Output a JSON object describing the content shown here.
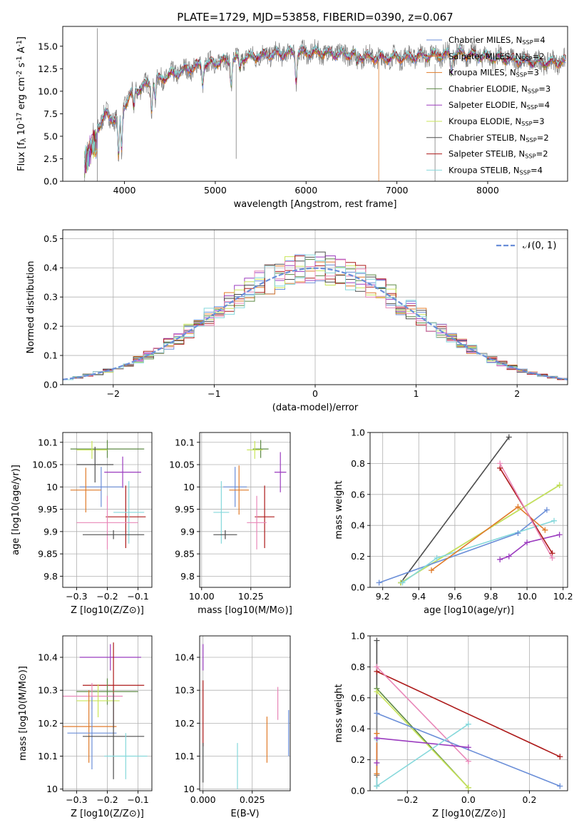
{
  "colors": {
    "c0": "#6a8ed8",
    "c1": "#e07b2a",
    "c2": "#5e8a46",
    "c3": "#9b3cbf",
    "c4": "#c9e55a",
    "c5": "#4d4d4d",
    "c6": "#ad1a1a",
    "c7": "#e887b8",
    "c8": "#85d8db",
    "c9": "#7f7f7f"
  },
  "chart_data": [
    {
      "id": "spectrum",
      "type": "line",
      "title": "PLATE=1729, MJD=53858, FIBERID=0390, z=0.067",
      "xlabel": "wavelength [Angstrom, rest frame]",
      "ylabel": "Flux [f_λ 10^-17 erg cm^-2 s^-1 A^-1]",
      "xlim": [
        3320,
        8880
      ],
      "ylim": [
        0,
        17.2
      ],
      "xticks": [
        4000,
        5000,
        6000,
        7000,
        8000
      ],
      "yticks": [
        0.0,
        2.5,
        5.0,
        7.5,
        10.0,
        12.5,
        15.0
      ],
      "grid": false,
      "legend_position": "upper right",
      "trend": {
        "x": [
          3550,
          3600,
          3700,
          3800,
          3900,
          4000,
          4100,
          4200,
          4300,
          4500,
          4800,
          5000,
          5300,
          5600,
          5900,
          6200,
          6500,
          6800,
          7100,
          7400,
          7700,
          8000,
          8300,
          8600,
          8800
        ],
        "y": [
          3.5,
          4.5,
          6.0,
          7.5,
          6.8,
          8.5,
          10.0,
          10.5,
          11.0,
          11.8,
          12.8,
          13.2,
          13.7,
          14.1,
          14.3,
          14.3,
          14.1,
          13.7,
          13.8,
          14.0,
          14.2,
          13.8,
          13.5,
          13.2,
          13.3
        ]
      },
      "series": [
        {
          "name": "Chabrier MILES, N_SSP=4",
          "color_key": "c0"
        },
        {
          "name": "Salpeter MILES, N_SSP=2",
          "color_key": "c1"
        },
        {
          "name": "Kroupa MILES, N_SSP=3",
          "color_key": "c1"
        },
        {
          "name": "Chabrier ELODIE, N_SSP=3",
          "color_key": "c2"
        },
        {
          "name": "Salpeter ELODIE, N_SSP=4",
          "color_key": "c3"
        },
        {
          "name": "Kroupa ELODIE, N_SSP=3",
          "color_key": "c4"
        },
        {
          "name": "Chabrier STELIB, N_SSP=2",
          "color_key": "c5"
        },
        {
          "name": "Salpeter STELIB, N_SSP=2",
          "color_key": "c6"
        },
        {
          "name": "Kroupa STELIB, N_SSP=4",
          "color_key": "c8"
        }
      ]
    },
    {
      "id": "residuals",
      "type": "line",
      "title": "",
      "xlabel": "(data-model)/error",
      "ylabel": "Normed distribution",
      "xlim": [
        -2.5,
        2.5
      ],
      "ylim": [
        0,
        0.53
      ],
      "xticks": [
        -2,
        -1,
        0,
        1,
        2
      ],
      "yticks": [
        0.0,
        0.1,
        0.2,
        0.3,
        0.4,
        0.5
      ],
      "grid": true,
      "legend_position": "upper right",
      "gaussian_label": "𝒩(0, 1)",
      "bin_width": 0.1,
      "series_color_keys": [
        "c0",
        "c1",
        "c2",
        "c3",
        "c4",
        "c5",
        "c6",
        "c7",
        "c8"
      ]
    },
    {
      "id": "age_vs_Z",
      "type": "scatter",
      "xlabel": "Z [log10(Z/Z⊙)]",
      "ylabel": "age  [log10(age/yr)]",
      "xlim": [
        -0.345,
        -0.055
      ],
      "ylim": [
        9.775,
        10.122
      ],
      "xticks": [
        -0.3,
        -0.2,
        -0.1
      ],
      "xtick_labels": [
        "−0.3",
        "−0.2",
        "−0.1"
      ],
      "yticks": [
        9.8,
        9.85,
        9.9,
        9.95,
        10.0,
        10.05,
        10.1
      ],
      "grid": true,
      "points": [
        {
          "c": "c2",
          "x": -0.2,
          "xe": 0.12,
          "y": 10.085,
          "ye": 0.02
        },
        {
          "c": "c4",
          "x": -0.25,
          "xe": 0.05,
          "y": 10.083,
          "ye": 0.02
        },
        {
          "c": "c5",
          "x": -0.24,
          "xe": 0.06,
          "y": 10.05,
          "ye": 0.04
        },
        {
          "c": "c3",
          "x": -0.15,
          "xe": 0.06,
          "y": 10.033,
          "ye": 0.035
        },
        {
          "c": "c0",
          "x": -0.22,
          "xe": 0.07,
          "y": 10.0,
          "ye": 0.045
        },
        {
          "c": "c1",
          "x": -0.27,
          "xe": 0.05,
          "y": 9.993,
          "ye": 0.05
        },
        {
          "c": "c6",
          "x": -0.14,
          "xe": 0.065,
          "y": 9.933,
          "ye": 0.07
        },
        {
          "c": "c8",
          "x": -0.13,
          "xe": 0.05,
          "y": 9.943,
          "ye": 0.07
        },
        {
          "c": "c7",
          "x": -0.2,
          "xe": 0.1,
          "y": 9.92,
          "ye": 0.06
        },
        {
          "c": "c5",
          "x": -0.18,
          "xe": 0.1,
          "y": 9.893,
          "ye": 0.01
        }
      ]
    },
    {
      "id": "age_vs_mass",
      "type": "scatter",
      "xlabel": "mass [log10(M/M⊙)]",
      "ylabel": "",
      "xlim": [
        9.99,
        10.45
      ],
      "ylim": [
        9.775,
        10.122
      ],
      "xticks": [
        10.0,
        10.25
      ],
      "xtick_labels": [
        "10.00",
        "10.25"
      ],
      "yticks": [
        9.8,
        9.85,
        9.9,
        9.95,
        10.0,
        10.05,
        10.1
      ],
      "grid": true,
      "points": [
        {
          "c": "c2",
          "x": 10.3,
          "xe": 0.04,
          "y": 10.085,
          "ye": 0.02
        },
        {
          "c": "c4",
          "x": 10.27,
          "xe": 0.04,
          "y": 10.083,
          "ye": 0.02
        },
        {
          "c": "c3",
          "x": 10.4,
          "xe": 0.03,
          "y": 10.033,
          "ye": 0.045
        },
        {
          "c": "c0",
          "x": 10.17,
          "xe": 0.06,
          "y": 10.0,
          "ye": 0.045
        },
        {
          "c": "c1",
          "x": 10.19,
          "xe": 0.05,
          "y": 9.993,
          "ye": 0.055
        },
        {
          "c": "c6",
          "x": 10.32,
          "xe": 0.05,
          "y": 9.933,
          "ye": 0.07
        },
        {
          "c": "c7",
          "x": 10.28,
          "xe": 0.05,
          "y": 9.92,
          "ye": 0.06
        },
        {
          "c": "c8",
          "x": 10.1,
          "xe": 0.04,
          "y": 9.943,
          "ye": 0.07
        },
        {
          "c": "c5",
          "x": 10.12,
          "xe": 0.06,
          "y": 9.893,
          "ye": 0.01
        }
      ]
    },
    {
      "id": "weight_vs_age",
      "type": "line",
      "xlabel": "age  [log10(age/yr)]",
      "ylabel": "mass weight",
      "xlim": [
        9.13,
        10.225
      ],
      "ylim": [
        0,
        1
      ],
      "xticks": [
        9.2,
        9.4,
        9.6,
        9.8,
        10.0,
        10.2
      ],
      "xtick_labels": [
        "9.2",
        "9.4",
        "9.6",
        "9.8",
        "10.0",
        "10.2"
      ],
      "yticks": [
        0.0,
        0.2,
        0.4,
        0.6,
        0.8,
        1.0
      ],
      "grid": true,
      "series": [
        {
          "c": "c5",
          "x": [
            9.3,
            9.9
          ],
          "y": [
            0.03,
            0.97
          ]
        },
        {
          "c": "c2",
          "x": [
            9.3,
            10.18
          ],
          "y": [
            0.03,
            0.66
          ]
        },
        {
          "c": "c4",
          "x": [
            9.3,
            10.18
          ],
          "y": [
            0.03,
            0.66
          ]
        },
        {
          "c": "c0",
          "x": [
            9.18,
            9.95,
            10.11
          ],
          "y": [
            0.03,
            0.35,
            0.5
          ]
        },
        {
          "c": "c8",
          "x": [
            9.31,
            9.5,
            10.15
          ],
          "y": [
            0.03,
            0.19,
            0.43
          ]
        },
        {
          "c": "c1",
          "x": [
            9.47,
            9.95,
            10.1
          ],
          "y": [
            0.11,
            0.52,
            0.37
          ]
        },
        {
          "c": "c3",
          "x": [
            9.85,
            9.9,
            10.0,
            10.18
          ],
          "y": [
            0.18,
            0.2,
            0.29,
            0.34
          ]
        },
        {
          "c": "c6",
          "x": [
            9.85,
            10.14
          ],
          "y": [
            0.77,
            0.22
          ]
        },
        {
          "c": "c7",
          "x": [
            9.85,
            10.14
          ],
          "y": [
            0.8,
            0.19
          ]
        }
      ]
    },
    {
      "id": "mass_vs_Z",
      "type": "scatter",
      "xlabel": "Z [log10(Z/Z⊙)]",
      "ylabel": "mass [log10(M/M⊙)]",
      "xlim": [
        -0.345,
        -0.055
      ],
      "ylim": [
        9.995,
        10.465
      ],
      "xticks": [
        -0.3,
        -0.2,
        -0.1
      ],
      "xtick_labels": [
        "−0.3",
        "−0.2",
        "−0.1"
      ],
      "yticks": [
        10.0,
        10.1,
        10.2,
        10.3,
        10.4
      ],
      "grid": true,
      "points": [
        {
          "c": "c3",
          "x": -0.19,
          "xe": 0.1,
          "y": 10.4,
          "ye": 0.04
        },
        {
          "c": "c6",
          "x": -0.18,
          "xe": 0.1,
          "y": 10.315,
          "ye": 0.13
        },
        {
          "c": "c2",
          "x": -0.2,
          "xe": 0.1,
          "y": 10.296,
          "ye": 0.04
        },
        {
          "c": "c7",
          "x": -0.25,
          "xe": 0.1,
          "y": 10.282,
          "ye": 0.04
        },
        {
          "c": "c4",
          "x": -0.23,
          "xe": 0.07,
          "y": 10.268,
          "ye": 0.05
        },
        {
          "c": "c1",
          "x": -0.26,
          "xe": 0.09,
          "y": 10.19,
          "ye": 0.11
        },
        {
          "c": "c0",
          "x": -0.25,
          "xe": 0.08,
          "y": 10.17,
          "ye": 0.11
        },
        {
          "c": "c5",
          "x": -0.18,
          "xe": 0.1,
          "y": 10.16,
          "ye": 0.13
        },
        {
          "c": "c8",
          "x": -0.14,
          "xe": 0.07,
          "y": 10.1,
          "ye": 0.07
        }
      ]
    },
    {
      "id": "mass_vs_ebv",
      "type": "scatter",
      "xlabel": "E(B-V)",
      "ylabel": "",
      "xlim": [
        -0.0017,
        0.0443
      ],
      "ylim": [
        9.995,
        10.465
      ],
      "xticks": [
        0.0,
        0.025
      ],
      "xtick_labels": [
        "0.000",
        "0.025"
      ],
      "yticks": [
        10.0,
        10.1,
        10.2,
        10.3,
        10.4
      ],
      "grid": true,
      "points": [
        {
          "c": "c3",
          "x": 0.0,
          "y": 10.4,
          "ye": 0.04
        },
        {
          "c": "c6",
          "x": 0.0,
          "y": 10.23,
          "ye": 0.1
        },
        {
          "c": "c5",
          "x": 0.0,
          "y": 10.08,
          "ye": 0.06
        },
        {
          "c": "c8",
          "x": 0.0175,
          "y": 10.07,
          "ye": 0.07
        },
        {
          "c": "c1",
          "x": 0.0325,
          "y": 10.15,
          "ye": 0.07
        },
        {
          "c": "c7",
          "x": 0.038,
          "y": 10.26,
          "ye": 0.05
        },
        {
          "c": "c0",
          "x": 0.0435,
          "y": 10.17,
          "ye": 0.07
        }
      ]
    },
    {
      "id": "weight_vs_Z",
      "type": "line",
      "xlabel": "Z [log10(Z/Z⊙)]",
      "ylabel": "mass weight",
      "xlim": [
        -0.322,
        0.325
      ],
      "ylim": [
        0,
        1
      ],
      "xticks": [
        -0.2,
        0.0,
        0.2
      ],
      "xtick_labels": [
        "−0.2",
        "0.0",
        "0.2"
      ],
      "yticks": [
        0.0,
        0.2,
        0.4,
        0.6,
        0.8,
        1.0
      ],
      "grid": true,
      "series": [
        {
          "c": "c5",
          "x": [
            -0.3,
            -0.3
          ],
          "y": [
            0.03,
            0.97
          ]
        },
        {
          "c": "c9",
          "x": [
            -0.3,
            -0.3
          ],
          "y": [
            0.1,
            0.5
          ]
        },
        {
          "c": "c6",
          "x": [
            -0.3,
            0.3
          ],
          "y": [
            0.77,
            0.22
          ]
        },
        {
          "c": "c7",
          "x": [
            -0.3,
            0.0
          ],
          "y": [
            0.8,
            0.19
          ]
        },
        {
          "c": "c2",
          "x": [
            -0.3,
            0.0
          ],
          "y": [
            0.66,
            0.02
          ]
        },
        {
          "c": "c4",
          "x": [
            -0.3,
            0.0
          ],
          "y": [
            0.64,
            0.02
          ]
        },
        {
          "c": "c0",
          "x": [
            -0.3,
            0.3
          ],
          "y": [
            0.5,
            0.03
          ]
        },
        {
          "c": "c3",
          "x": [
            -0.3,
            0.0
          ],
          "y": [
            0.34,
            0.28
          ]
        },
        {
          "c": "c8",
          "x": [
            -0.3,
            0.0
          ],
          "y": [
            0.03,
            0.43
          ]
        },
        {
          "c": "c8",
          "x": [
            -0.3,
            -0.3
          ],
          "y": [
            0.03,
            0.33
          ]
        },
        {
          "c": "c3",
          "x": [
            -0.3,
            -0.3
          ],
          "y": [
            0.18,
            0.34
          ]
        },
        {
          "c": "c1",
          "x": [
            -0.3,
            -0.3
          ],
          "y": [
            0.11,
            0.37
          ]
        }
      ]
    }
  ]
}
